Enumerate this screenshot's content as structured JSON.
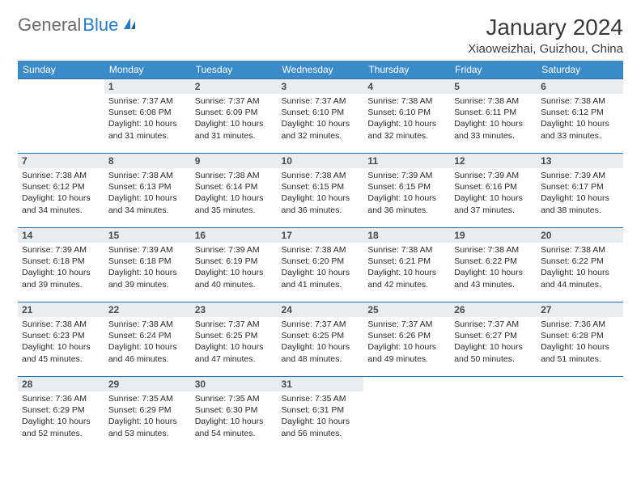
{
  "logo": {
    "part1": "General",
    "part2": "Blue"
  },
  "title": "January 2024",
  "location": "Xiaoweizhai, Guizhou, China",
  "colors": {
    "header_bg": "#3b8bc9",
    "header_text": "#ffffff",
    "daynum_bg": "#e9edf0",
    "row_border": "#2a6fa8",
    "logo_gray": "#6b6b6b",
    "logo_blue": "#2a7bbf"
  },
  "fonts": {
    "month_title_size": 28,
    "location_size": 15,
    "dayhead_size": 12,
    "daynum_size": 12,
    "cell_size": 10.5
  },
  "day_headers": [
    "Sunday",
    "Monday",
    "Tuesday",
    "Wednesday",
    "Thursday",
    "Friday",
    "Saturday"
  ],
  "weeks": [
    [
      {
        "day": "",
        "sunrise": "",
        "sunset": "",
        "daylight": ""
      },
      {
        "day": "1",
        "sunrise": "Sunrise: 7:37 AM",
        "sunset": "Sunset: 6:08 PM",
        "daylight": "Daylight: 10 hours and 31 minutes."
      },
      {
        "day": "2",
        "sunrise": "Sunrise: 7:37 AM",
        "sunset": "Sunset: 6:09 PM",
        "daylight": "Daylight: 10 hours and 31 minutes."
      },
      {
        "day": "3",
        "sunrise": "Sunrise: 7:37 AM",
        "sunset": "Sunset: 6:10 PM",
        "daylight": "Daylight: 10 hours and 32 minutes."
      },
      {
        "day": "4",
        "sunrise": "Sunrise: 7:38 AM",
        "sunset": "Sunset: 6:10 PM",
        "daylight": "Daylight: 10 hours and 32 minutes."
      },
      {
        "day": "5",
        "sunrise": "Sunrise: 7:38 AM",
        "sunset": "Sunset: 6:11 PM",
        "daylight": "Daylight: 10 hours and 33 minutes."
      },
      {
        "day": "6",
        "sunrise": "Sunrise: 7:38 AM",
        "sunset": "Sunset: 6:12 PM",
        "daylight": "Daylight: 10 hours and 33 minutes."
      }
    ],
    [
      {
        "day": "7",
        "sunrise": "Sunrise: 7:38 AM",
        "sunset": "Sunset: 6:12 PM",
        "daylight": "Daylight: 10 hours and 34 minutes."
      },
      {
        "day": "8",
        "sunrise": "Sunrise: 7:38 AM",
        "sunset": "Sunset: 6:13 PM",
        "daylight": "Daylight: 10 hours and 34 minutes."
      },
      {
        "day": "9",
        "sunrise": "Sunrise: 7:38 AM",
        "sunset": "Sunset: 6:14 PM",
        "daylight": "Daylight: 10 hours and 35 minutes."
      },
      {
        "day": "10",
        "sunrise": "Sunrise: 7:38 AM",
        "sunset": "Sunset: 6:15 PM",
        "daylight": "Daylight: 10 hours and 36 minutes."
      },
      {
        "day": "11",
        "sunrise": "Sunrise: 7:39 AM",
        "sunset": "Sunset: 6:15 PM",
        "daylight": "Daylight: 10 hours and 36 minutes."
      },
      {
        "day": "12",
        "sunrise": "Sunrise: 7:39 AM",
        "sunset": "Sunset: 6:16 PM",
        "daylight": "Daylight: 10 hours and 37 minutes."
      },
      {
        "day": "13",
        "sunrise": "Sunrise: 7:39 AM",
        "sunset": "Sunset: 6:17 PM",
        "daylight": "Daylight: 10 hours and 38 minutes."
      }
    ],
    [
      {
        "day": "14",
        "sunrise": "Sunrise: 7:39 AM",
        "sunset": "Sunset: 6:18 PM",
        "daylight": "Daylight: 10 hours and 39 minutes."
      },
      {
        "day": "15",
        "sunrise": "Sunrise: 7:39 AM",
        "sunset": "Sunset: 6:18 PM",
        "daylight": "Daylight: 10 hours and 39 minutes."
      },
      {
        "day": "16",
        "sunrise": "Sunrise: 7:39 AM",
        "sunset": "Sunset: 6:19 PM",
        "daylight": "Daylight: 10 hours and 40 minutes."
      },
      {
        "day": "17",
        "sunrise": "Sunrise: 7:38 AM",
        "sunset": "Sunset: 6:20 PM",
        "daylight": "Daylight: 10 hours and 41 minutes."
      },
      {
        "day": "18",
        "sunrise": "Sunrise: 7:38 AM",
        "sunset": "Sunset: 6:21 PM",
        "daylight": "Daylight: 10 hours and 42 minutes."
      },
      {
        "day": "19",
        "sunrise": "Sunrise: 7:38 AM",
        "sunset": "Sunset: 6:22 PM",
        "daylight": "Daylight: 10 hours and 43 minutes."
      },
      {
        "day": "20",
        "sunrise": "Sunrise: 7:38 AM",
        "sunset": "Sunset: 6:22 PM",
        "daylight": "Daylight: 10 hours and 44 minutes."
      }
    ],
    [
      {
        "day": "21",
        "sunrise": "Sunrise: 7:38 AM",
        "sunset": "Sunset: 6:23 PM",
        "daylight": "Daylight: 10 hours and 45 minutes."
      },
      {
        "day": "22",
        "sunrise": "Sunrise: 7:38 AM",
        "sunset": "Sunset: 6:24 PM",
        "daylight": "Daylight: 10 hours and 46 minutes."
      },
      {
        "day": "23",
        "sunrise": "Sunrise: 7:37 AM",
        "sunset": "Sunset: 6:25 PM",
        "daylight": "Daylight: 10 hours and 47 minutes."
      },
      {
        "day": "24",
        "sunrise": "Sunrise: 7:37 AM",
        "sunset": "Sunset: 6:25 PM",
        "daylight": "Daylight: 10 hours and 48 minutes."
      },
      {
        "day": "25",
        "sunrise": "Sunrise: 7:37 AM",
        "sunset": "Sunset: 6:26 PM",
        "daylight": "Daylight: 10 hours and 49 minutes."
      },
      {
        "day": "26",
        "sunrise": "Sunrise: 7:37 AM",
        "sunset": "Sunset: 6:27 PM",
        "daylight": "Daylight: 10 hours and 50 minutes."
      },
      {
        "day": "27",
        "sunrise": "Sunrise: 7:36 AM",
        "sunset": "Sunset: 6:28 PM",
        "daylight": "Daylight: 10 hours and 51 minutes."
      }
    ],
    [
      {
        "day": "28",
        "sunrise": "Sunrise: 7:36 AM",
        "sunset": "Sunset: 6:29 PM",
        "daylight": "Daylight: 10 hours and 52 minutes."
      },
      {
        "day": "29",
        "sunrise": "Sunrise: 7:35 AM",
        "sunset": "Sunset: 6:29 PM",
        "daylight": "Daylight: 10 hours and 53 minutes."
      },
      {
        "day": "30",
        "sunrise": "Sunrise: 7:35 AM",
        "sunset": "Sunset: 6:30 PM",
        "daylight": "Daylight: 10 hours and 54 minutes."
      },
      {
        "day": "31",
        "sunrise": "Sunrise: 7:35 AM",
        "sunset": "Sunset: 6:31 PM",
        "daylight": "Daylight: 10 hours and 56 minutes."
      },
      {
        "day": "",
        "sunrise": "",
        "sunset": "",
        "daylight": ""
      },
      {
        "day": "",
        "sunrise": "",
        "sunset": "",
        "daylight": ""
      },
      {
        "day": "",
        "sunrise": "",
        "sunset": "",
        "daylight": ""
      }
    ]
  ]
}
